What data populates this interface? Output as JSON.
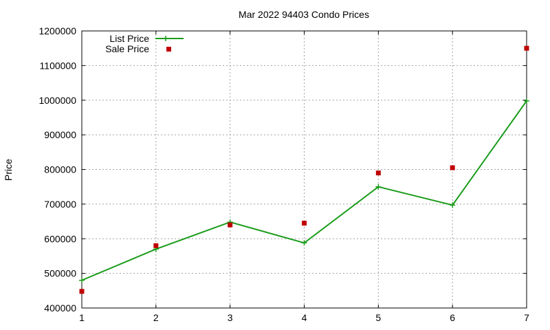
{
  "chart_data": {
    "type": "line",
    "title": "Mar 2022 94403 Condo Prices",
    "ylabel": "Price",
    "xlabel": "",
    "xlim": [
      1,
      7
    ],
    "ylim": [
      400000,
      1200000
    ],
    "xticks": [
      "1",
      "2",
      "3",
      "4",
      "5",
      "6",
      "7"
    ],
    "yticks": [
      "400000",
      "500000",
      "600000",
      "700000",
      "800000",
      "900000",
      "1000000",
      "1100000",
      "1200000"
    ],
    "grid": true,
    "legend_position": "top-left",
    "x": [
      1,
      2,
      3,
      4,
      5,
      6,
      7
    ],
    "series": [
      {
        "name": "List Price",
        "kind": "line-with-plus-markers",
        "color": "#1a9c1a",
        "values": [
          480000,
          570000,
          648000,
          588000,
          750000,
          697000,
          998000
        ]
      },
      {
        "name": "Sale Price",
        "kind": "square-markers",
        "color": "#c00000",
        "values": [
          448000,
          580000,
          640000,
          645000,
          790000,
          805000,
          1150000
        ]
      }
    ]
  }
}
